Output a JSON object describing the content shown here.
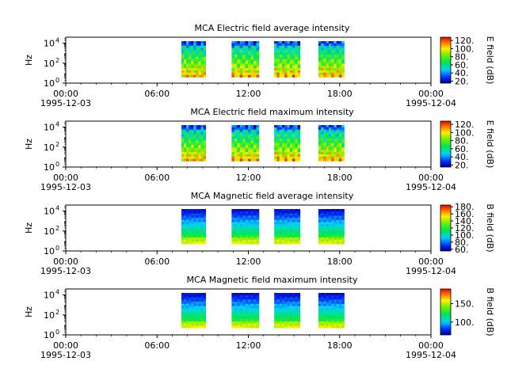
{
  "chart_data": [
    {
      "type": "heatmap",
      "title": "MCA  Electric field average intensity",
      "ylabel": "Hz",
      "y_scale": "log",
      "y_ticks": [
        {
          "base": "10",
          "exp": "0"
        },
        {
          "base": "10",
          "exp": "2"
        },
        {
          "base": "10",
          "exp": "4"
        }
      ],
      "x_ticks": [
        "00:00",
        "06:00",
        "12:00",
        "18:00",
        "00:00"
      ],
      "x_dates": [
        "1995-12-03",
        "1995-12-04"
      ],
      "xlim_hours": [
        0,
        24
      ],
      "data_blocks_hours": [
        [
          7.6,
          9.2
        ],
        [
          10.9,
          12.7
        ],
        [
          13.7,
          15.4
        ],
        [
          16.6,
          18.3
        ]
      ],
      "colorbar": {
        "label": "E field (dB)",
        "ticks": [
          "20.",
          "40.",
          "60.",
          "80.",
          "100.",
          "120."
        ],
        "range": [
          15,
          128
        ]
      },
      "palette": "spectral"
    },
    {
      "type": "heatmap",
      "title": "MCA  Electric field maximum intensity",
      "ylabel": "Hz",
      "y_scale": "log",
      "y_ticks": [
        {
          "base": "10",
          "exp": "0"
        },
        {
          "base": "10",
          "exp": "2"
        },
        {
          "base": "10",
          "exp": "4"
        }
      ],
      "x_ticks": [
        "00:00",
        "06:00",
        "12:00",
        "18:00",
        "00:00"
      ],
      "x_dates": [
        "1995-12-03",
        "1995-12-04"
      ],
      "xlim_hours": [
        0,
        24
      ],
      "data_blocks_hours": [
        [
          7.6,
          9.2
        ],
        [
          10.9,
          12.7
        ],
        [
          13.7,
          15.4
        ],
        [
          16.6,
          18.3
        ]
      ],
      "colorbar": {
        "label": "E field (dB)",
        "ticks": [
          "20.",
          "40.",
          "60.",
          "80.",
          "100.",
          "120."
        ],
        "range": [
          15,
          128
        ]
      },
      "palette": "spectral"
    },
    {
      "type": "heatmap",
      "title": "MCA  Magnetic field average intensity",
      "ylabel": "Hz",
      "y_scale": "log",
      "y_ticks": [
        {
          "base": "10",
          "exp": "0"
        },
        {
          "base": "10",
          "exp": "2"
        },
        {
          "base": "10",
          "exp": "4"
        }
      ],
      "x_ticks": [
        "00:00",
        "06:00",
        "12:00",
        "18:00",
        "00:00"
      ],
      "x_dates": [
        "1995-12-03",
        "1995-12-04"
      ],
      "xlim_hours": [
        0,
        24
      ],
      "data_blocks_hours": [
        [
          7.6,
          9.2
        ],
        [
          10.9,
          12.7
        ],
        [
          13.7,
          15.4
        ],
        [
          16.6,
          18.3
        ]
      ],
      "colorbar": {
        "label": "B field (dB)",
        "ticks": [
          "60.",
          "80.",
          "100.",
          "120.",
          "140.",
          "160.",
          "180."
        ],
        "range": [
          55,
          185
        ]
      },
      "palette": "spectral"
    },
    {
      "type": "heatmap",
      "title": "MCA  Magnetic field maximum intensity",
      "ylabel": "Hz",
      "y_scale": "log",
      "y_ticks": [
        {
          "base": "10",
          "exp": "0"
        },
        {
          "base": "10",
          "exp": "2"
        },
        {
          "base": "10",
          "exp": "4"
        }
      ],
      "x_ticks": [
        "00:00",
        "06:00",
        "12:00",
        "18:00",
        "00:00"
      ],
      "x_dates": [
        "1995-12-03",
        "1995-12-04"
      ],
      "xlim_hours": [
        0,
        24
      ],
      "data_blocks_hours": [
        [
          7.6,
          9.2
        ],
        [
          10.9,
          12.7
        ],
        [
          13.7,
          15.4
        ],
        [
          16.6,
          18.3
        ]
      ],
      "colorbar": {
        "label": "B field (dB)",
        "ticks": [
          "100.",
          "150."
        ],
        "range": [
          65,
          190
        ]
      },
      "palette": "spectral"
    }
  ]
}
